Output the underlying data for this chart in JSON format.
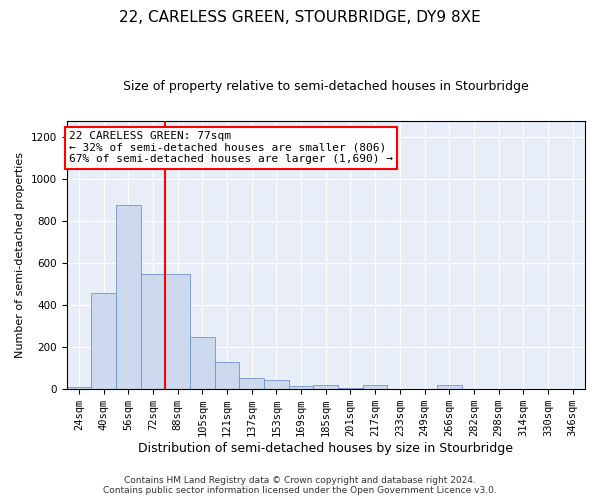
{
  "title": "22, CARELESS GREEN, STOURBRIDGE, DY9 8XE",
  "subtitle": "Size of property relative to semi-detached houses in Stourbridge",
  "xlabel": "Distribution of semi-detached houses by size in Stourbridge",
  "ylabel": "Number of semi-detached properties",
  "categories": [
    "24sqm",
    "40sqm",
    "56sqm",
    "72sqm",
    "88sqm",
    "105sqm",
    "121sqm",
    "137sqm",
    "153sqm",
    "169sqm",
    "185sqm",
    "201sqm",
    "217sqm",
    "233sqm",
    "249sqm",
    "266sqm",
    "282sqm",
    "298sqm",
    "314sqm",
    "330sqm",
    "346sqm"
  ],
  "values": [
    10,
    460,
    880,
    550,
    550,
    250,
    130,
    55,
    45,
    15,
    20,
    5,
    20,
    0,
    0,
    20,
    0,
    0,
    0,
    0,
    0
  ],
  "bar_color": "#ccd9ee",
  "bar_edgecolor": "#7096c8",
  "vline_bin_index": 4,
  "vline_color": "red",
  "annotation_text": "22 CARELESS GREEN: 77sqm\n← 32% of semi-detached houses are smaller (806)\n67% of semi-detached houses are larger (1,690) →",
  "annotation_box_edgecolor": "red",
  "annotation_box_facecolor": "white",
  "ylim": [
    0,
    1280
  ],
  "yticks": [
    0,
    200,
    400,
    600,
    800,
    1000,
    1200
  ],
  "background_color": "#e8eef8",
  "footer_line1": "Contains HM Land Registry data © Crown copyright and database right 2024.",
  "footer_line2": "Contains public sector information licensed under the Open Government Licence v3.0.",
  "title_fontsize": 11,
  "subtitle_fontsize": 9,
  "xlabel_fontsize": 9,
  "ylabel_fontsize": 8,
  "tick_fontsize": 7.5,
  "annotation_fontsize": 8,
  "footer_fontsize": 6.5
}
